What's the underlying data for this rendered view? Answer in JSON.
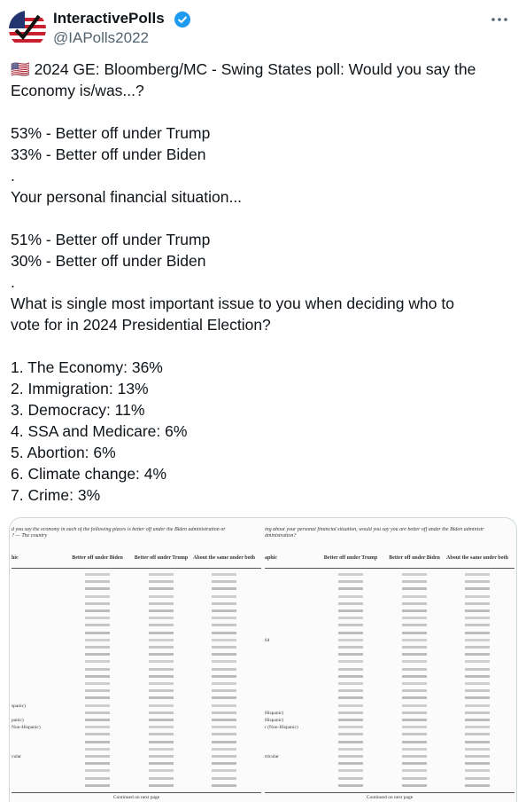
{
  "author": {
    "name": "InteractivePolls",
    "handle": "@IAPolls2022"
  },
  "body": {
    "paragraphs": [
      [
        "🇺🇸 2024 GE: Bloomberg/MC - Swing States poll: Would you say the",
        "Economy is/was...?"
      ],
      [
        "53% - Better off under Trump",
        "33% - Better off under Biden",
        ".",
        "Your personal financial situation..."
      ],
      [
        "51% - Better off under Trump",
        "30% - Better off under Biden",
        ".",
        "What is single most important issue to you when deciding who to",
        "vote for in 2024 Presidential Election?"
      ],
      [
        "1. The Economy: 36%",
        "2. Immigration: 13%",
        "3. Democracy: 11%",
        "4. SSA and Medicare: 6%",
        "5. Abortion: 6%",
        "6. Climate change: 4%",
        "7. Crime: 3%"
      ]
    ]
  },
  "image": {
    "tables": [
      {
        "caption": [
          "d you say the economy in each of the following places is better off under the Biden administration or",
          "? — The country"
        ],
        "headers": [
          "hic",
          "Better off under Biden",
          "Better off under Trump",
          "About the same under both"
        ],
        "row_labels": [
          "spanic)",
          "panic)",
          "Non-Hispanic)",
          "cular"
        ],
        "footer": "Continued on next page"
      },
      {
        "caption": [
          "ing about your personal financial situation, would you say you are better off under the Biden administr",
          "dministration?"
        ],
        "headers": [
          "aphic",
          "Better off under Trump",
          "Better off under Biden",
          "About the same under both"
        ],
        "row_labels": [
          "64",
          "Hispanic)",
          "Hispanic)",
          "r (Non-Hispanic)",
          "rticular"
        ],
        "footer": "Continued on next page"
      }
    ]
  }
}
